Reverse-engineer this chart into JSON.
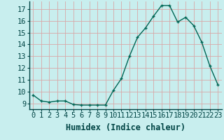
{
  "x": [
    0,
    1,
    2,
    3,
    4,
    5,
    6,
    7,
    8,
    9,
    10,
    11,
    12,
    13,
    14,
    15,
    16,
    17,
    18,
    19,
    20,
    21,
    22,
    23
  ],
  "y": [
    9.7,
    9.2,
    9.1,
    9.2,
    9.2,
    8.9,
    8.85,
    8.85,
    8.85,
    8.85,
    10.1,
    11.1,
    13.0,
    14.6,
    15.4,
    16.4,
    17.3,
    17.3,
    15.9,
    16.3,
    15.6,
    14.2,
    12.2,
    10.6
  ],
  "xlabel": "Humidex (Indice chaleur)",
  "bg_color": "#c8eeee",
  "grid_color": "#d8a8a8",
  "line_color": "#006655",
  "ylim": [
    8.5,
    17.65
  ],
  "xlim": [
    -0.5,
    23.5
  ],
  "yticks": [
    9,
    10,
    11,
    12,
    13,
    14,
    15,
    16,
    17
  ],
  "xtick_labels": [
    "0",
    "1",
    "2",
    "3",
    "4",
    "5",
    "6",
    "7",
    "8",
    "9",
    "10",
    "11",
    "12",
    "13",
    "14",
    "15",
    "16",
    "17",
    "18",
    "19",
    "20",
    "21",
    "22",
    "23"
  ],
  "tick_fontsize": 7.5,
  "xlabel_fontsize": 8.5
}
